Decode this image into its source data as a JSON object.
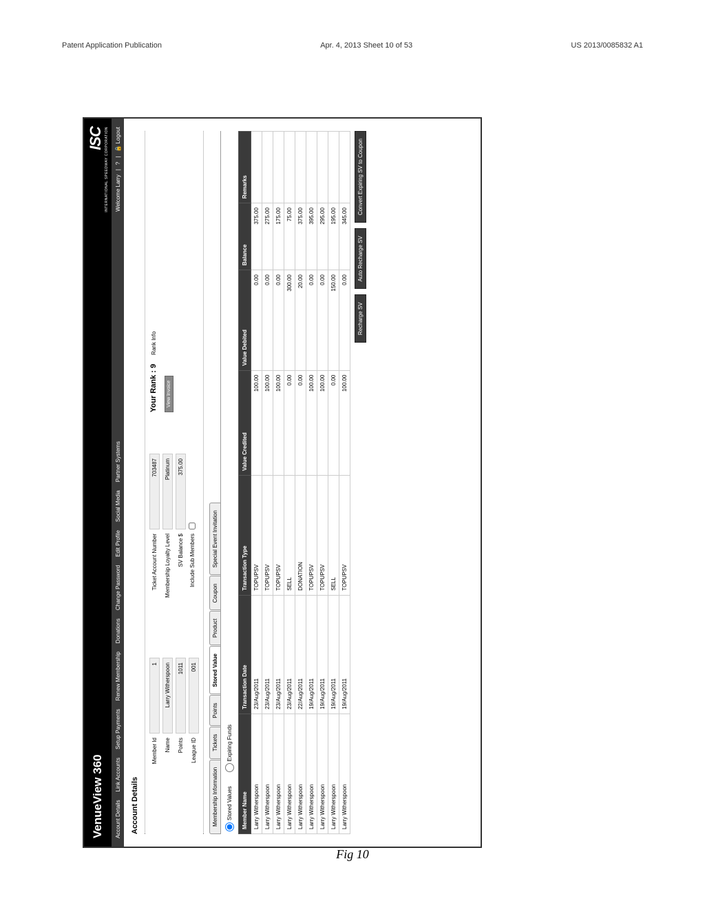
{
  "pub": {
    "left": "Patent Application Publication",
    "center": "Apr. 4, 2013  Sheet 10 of 53",
    "right": "US 2013/0085832 A1"
  },
  "header": {
    "title": "VenueView 360",
    "logo": "ISC",
    "logo_sub": "INTERNATIONAL SPEEDWAY CORPORATION"
  },
  "nav": {
    "items": [
      "Account Details",
      "Link Accounts",
      "Setup Payments",
      "Renew Membership",
      "Donations",
      "Change Password",
      "Edit Profile",
      "Social Media",
      "Partner Systems"
    ],
    "welcome": "Welcome Larry",
    "help": "?",
    "logout": "Logout"
  },
  "section_title": "Account Details",
  "details": {
    "left": [
      {
        "label": "Member Id",
        "value": "1"
      },
      {
        "label": "Name",
        "value": "Larry Witherspoon"
      },
      {
        "label": "Points",
        "value": "1011"
      },
      {
        "label": "League ID",
        "value": "001"
      }
    ],
    "right": [
      {
        "label": "Ticket Account Number",
        "value": "703487"
      },
      {
        "label": "Membership Loyalty Level",
        "value": "Platinum"
      },
      {
        "label": "SV Balance $",
        "value": "375.00"
      }
    ],
    "include_sub": "Include Sub Members",
    "rank_label": "Your Rank :",
    "rank_value": "9",
    "rank_info": "Rank Info",
    "view_invoice": "View Invoice"
  },
  "tabs": [
    "Membership Information",
    "Tickets",
    "Points",
    "Stored Value",
    "Product",
    "Coupon",
    "Special Event Invitation"
  ],
  "active_tab": 3,
  "radios": {
    "stored": "Stored Values",
    "expiring": "Expiring Funds"
  },
  "table": {
    "headers": [
      "Member Name",
      "Transaction Date",
      "Transaction Type",
      "Value Credited",
      "Value Debited",
      "Balance",
      "Remarks"
    ],
    "rows": [
      [
        "Larry Witherspoon",
        "23/Aug/2011",
        "TOPUPSV",
        "100.00",
        "0.00",
        "375.00",
        ""
      ],
      [
        "Larry Witherspoon",
        "23/Aug/2011",
        "TOPUPSV",
        "100.00",
        "0.00",
        "275.00",
        ""
      ],
      [
        "Larry Witherspoon",
        "23/Aug/2011",
        "TOPUPSV",
        "100.00",
        "0.00",
        "175.00",
        ""
      ],
      [
        "Larry Witherspoon",
        "23/Aug/2011",
        "SELL",
        "0.00",
        "300.00",
        "75.00",
        ""
      ],
      [
        "Larry Witherspoon",
        "22/Aug/2011",
        "DONATION",
        "0.00",
        "20.00",
        "375.00",
        ""
      ],
      [
        "Larry Witherspoon",
        "19/Aug/2011",
        "TOPUPSV",
        "100.00",
        "0.00",
        "395.00",
        ""
      ],
      [
        "Larry Witherspoon",
        "19/Aug/2011",
        "TOPUPSV",
        "100.00",
        "0.00",
        "295.00",
        ""
      ],
      [
        "Larry Witherspoon",
        "19/Aug/2011",
        "SELL",
        "0.00",
        "150.00",
        "195.00",
        ""
      ],
      [
        "Larry Witherspoon",
        "19/Aug/2011",
        "TOPUPSV",
        "100.00",
        "0.00",
        "345.00",
        ""
      ]
    ]
  },
  "actions": {
    "recharge": "Recharge SV",
    "auto": "Auto Recharge SV",
    "convert": "Convert Expiring SV to Coupon"
  },
  "fig": "Fig 10"
}
